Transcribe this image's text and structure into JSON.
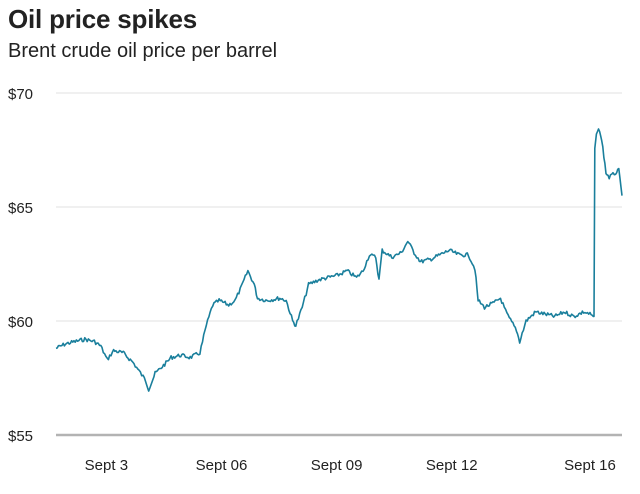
{
  "chart_data": {
    "type": "line",
    "title": "Oil price spikes",
    "subtitle": "Brent crude oil price per barrel",
    "xlabel": "",
    "ylabel": "",
    "ylim": [
      55,
      70
    ],
    "yticks": [
      55,
      60,
      65,
      70
    ],
    "ytick_labels": [
      "$55",
      "$60",
      "$65",
      "$70"
    ],
    "grid": true,
    "xlim": [
      "2019-09-02",
      "2019-09-16"
    ],
    "xticks": [
      "2019-09-03",
      "2019-09-06",
      "2019-09-09",
      "2019-09-12",
      "2019-09-16"
    ],
    "xtick_labels": [
      "Sept 3",
      "Sept 06",
      "Sept 09",
      "Sept 12",
      "Sept 16"
    ],
    "line_color": "#1a7f9c",
    "series": [
      {
        "points": [
          [
            "2019-09-02T00:00",
            58.8
          ],
          [
            "2019-09-02T06:00",
            59.0
          ],
          [
            "2019-09-02T12:00",
            59.1
          ],
          [
            "2019-09-02T18:00",
            59.2
          ],
          [
            "2019-09-03T00:00",
            59.1
          ],
          [
            "2019-09-03T04:00",
            58.9
          ],
          [
            "2019-09-03T08:00",
            58.3
          ],
          [
            "2019-09-03T12:00",
            58.7
          ],
          [
            "2019-09-03T18:00",
            58.6
          ],
          [
            "2019-09-04T00:00",
            58.2
          ],
          [
            "2019-09-04T04:00",
            57.8
          ],
          [
            "2019-09-04T08:00",
            57.4
          ],
          [
            "2019-09-04T10:00",
            57.0
          ],
          [
            "2019-09-04T14:00",
            57.7
          ],
          [
            "2019-09-04T20:00",
            58.1
          ],
          [
            "2019-09-05T00:00",
            58.4
          ],
          [
            "2019-09-05T06:00",
            58.5
          ],
          [
            "2019-09-05T12:00",
            58.4
          ],
          [
            "2019-09-05T18:00",
            58.6
          ],
          [
            "2019-09-05T22:00",
            59.8
          ],
          [
            "2019-09-06T02:00",
            60.7
          ],
          [
            "2019-09-06T06:00",
            60.9
          ],
          [
            "2019-09-06T12:00",
            60.7
          ],
          [
            "2019-09-06T16:00",
            60.9
          ],
          [
            "2019-09-06T20:00",
            61.5
          ],
          [
            "2019-09-07T00:00",
            62.2
          ],
          [
            "2019-09-07T04:00",
            61.6
          ],
          [
            "2019-09-07T06:00",
            61.0
          ],
          [
            "2019-09-07T12:00",
            60.9
          ],
          [
            "2019-09-07T20:00",
            61.0
          ],
          [
            "2019-09-08T00:00",
            60.9
          ],
          [
            "2019-09-08T04:00",
            60.0
          ],
          [
            "2019-09-08T06:00",
            59.8
          ],
          [
            "2019-09-08T10:00",
            60.6
          ],
          [
            "2019-09-08T14:00",
            61.6
          ],
          [
            "2019-09-08T20:00",
            61.8
          ],
          [
            "2019-09-09T02:00",
            61.9
          ],
          [
            "2019-09-09T08:00",
            62.0
          ],
          [
            "2019-09-09T14:00",
            62.2
          ],
          [
            "2019-09-09T20:00",
            61.9
          ],
          [
            "2019-09-10T00:00",
            62.2
          ],
          [
            "2019-09-10T04:00",
            62.9
          ],
          [
            "2019-09-10T08:00",
            62.8
          ],
          [
            "2019-09-10T10:00",
            61.8
          ],
          [
            "2019-09-10T12:00",
            63.1
          ],
          [
            "2019-09-10T18:00",
            62.8
          ],
          [
            "2019-09-11T00:00",
            63.0
          ],
          [
            "2019-09-11T04:00",
            63.5
          ],
          [
            "2019-09-11T08:00",
            63.0
          ],
          [
            "2019-09-11T12:00",
            62.6
          ],
          [
            "2019-09-11T18:00",
            62.7
          ],
          [
            "2019-09-12T00:00",
            62.9
          ],
          [
            "2019-09-12T06:00",
            63.1
          ],
          [
            "2019-09-12T12:00",
            62.9
          ],
          [
            "2019-09-12T18:00",
            62.9
          ],
          [
            "2019-09-12T22:00",
            62.3
          ],
          [
            "2019-09-13T00:00",
            60.9
          ],
          [
            "2019-09-13T04:00",
            60.6
          ],
          [
            "2019-09-13T10:00",
            60.8
          ],
          [
            "2019-09-13T14:00",
            61.0
          ],
          [
            "2019-09-13T18:00",
            60.3
          ],
          [
            "2019-09-14T00:00",
            59.6
          ],
          [
            "2019-09-14T02:00",
            59.1
          ],
          [
            "2019-09-14T06:00",
            60.0
          ],
          [
            "2019-09-14T12:00",
            60.4
          ],
          [
            "2019-09-14T18:00",
            60.3
          ],
          [
            "2019-09-15T00:00",
            60.2
          ],
          [
            "2019-09-15T06:00",
            60.4
          ],
          [
            "2019-09-15T12:00",
            60.2
          ],
          [
            "2019-09-15T18:00",
            60.4
          ],
          [
            "2019-09-15T22:00",
            60.3
          ],
          [
            "2019-09-16T00:00",
            60.2
          ],
          [
            "2019-09-16T00:30",
            60.2
          ],
          [
            "2019-09-16T01:00",
            67.5
          ],
          [
            "2019-09-16T02:00",
            68.2
          ],
          [
            "2019-09-16T04:00",
            68.4
          ],
          [
            "2019-09-16T06:00",
            67.6
          ],
          [
            "2019-09-16T08:00",
            66.5
          ],
          [
            "2019-09-16T10:00",
            66.3
          ],
          [
            "2019-09-16T14:00",
            66.5
          ],
          [
            "2019-09-16T16:00",
            66.6
          ],
          [
            "2019-09-16T18:00",
            65.5
          ]
        ]
      }
    ]
  }
}
